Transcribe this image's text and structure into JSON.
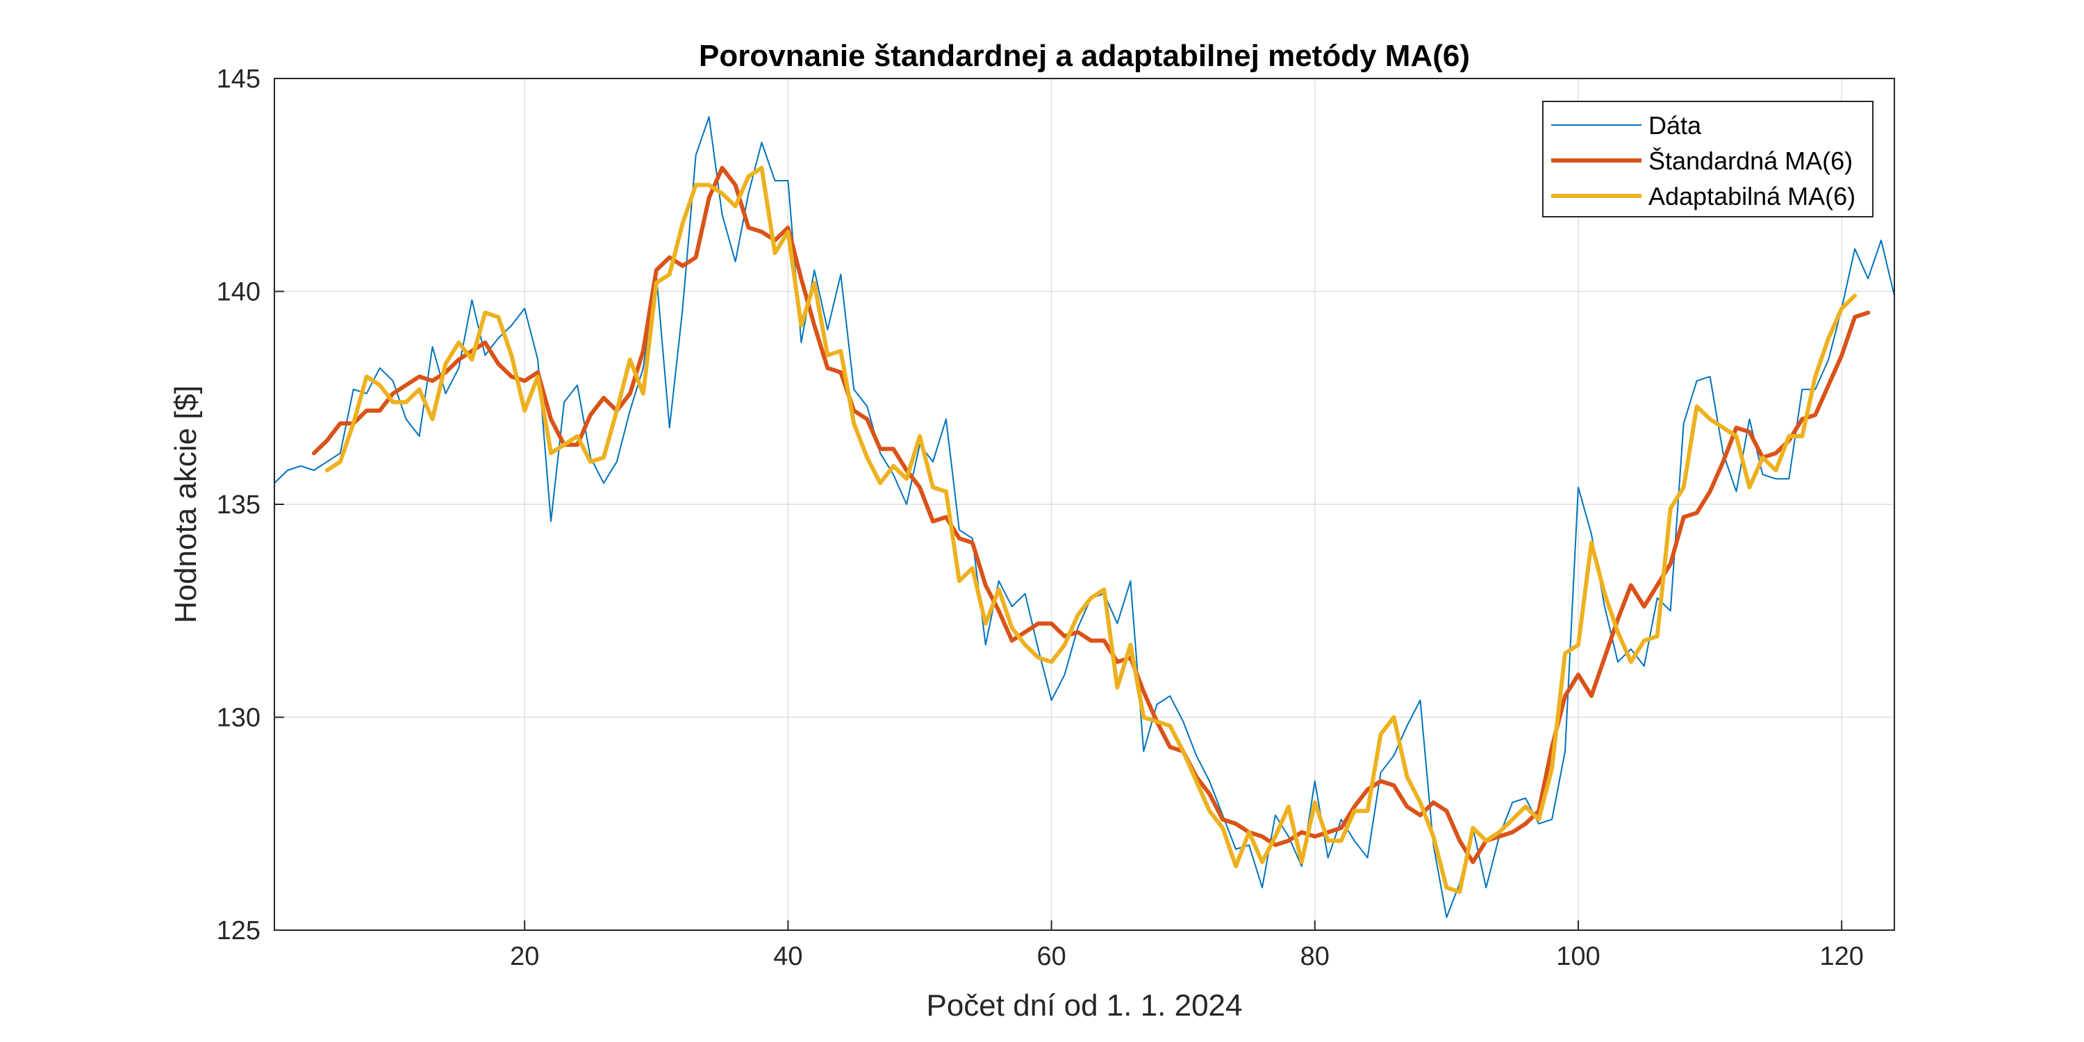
{
  "chart_data": {
    "type": "line",
    "title": "Porovnanie štandardnej a adaptabilnej metódy MA(6)",
    "xlabel": "Počet dní od 1. 1. 2024",
    "ylabel": "Hodnota akcie [$]",
    "xlim": [
      1,
      124
    ],
    "ylim": [
      125,
      145
    ],
    "xticks": [
      20,
      40,
      60,
      80,
      100,
      120
    ],
    "yticks": [
      125,
      130,
      135,
      140,
      145
    ],
    "grid": true,
    "legend_position": "top-right",
    "series": [
      {
        "name": "Dáta",
        "color": "#0072BD",
        "x_start": 1,
        "values": [
          135.5,
          135.8,
          135.9,
          135.8,
          136.0,
          136.2,
          137.7,
          137.6,
          138.2,
          137.9,
          137.0,
          136.6,
          138.7,
          137.6,
          138.2,
          139.8,
          138.5,
          138.9,
          139.2,
          139.6,
          138.4,
          134.6,
          137.4,
          137.8,
          136.1,
          135.5,
          136.0,
          137.2,
          138.2,
          140.4,
          136.8,
          139.6,
          143.2,
          144.1,
          141.8,
          140.7,
          142.3,
          143.5,
          142.6,
          142.6,
          138.8,
          140.5,
          139.1,
          140.4,
          137.7,
          137.3,
          136.2,
          135.7,
          135.0,
          136.4,
          136.0,
          137.0,
          134.4,
          134.2,
          131.7,
          133.2,
          132.6,
          132.9,
          131.6,
          130.4,
          131.0,
          132.1,
          132.8,
          132.9,
          132.2,
          133.2,
          129.2,
          130.3,
          130.5,
          129.9,
          129.1,
          128.5,
          127.7,
          126.9,
          127.0,
          126.0,
          127.7,
          127.2,
          126.5,
          128.5,
          126.7,
          127.6,
          127.1,
          126.7,
          128.7,
          129.1,
          129.8,
          130.4,
          127.0,
          125.3,
          126.1,
          127.4,
          126.0,
          127.2,
          128.0,
          128.1,
          127.5,
          127.6,
          129.2,
          135.4,
          134.3,
          132.6,
          131.3,
          131.6,
          131.2,
          132.8,
          132.5,
          136.9,
          137.9,
          138.0,
          136.2,
          135.3,
          137.0,
          135.7,
          135.6,
          135.6,
          137.7,
          137.7,
          138.4,
          139.6,
          141.0,
          140.3,
          141.2,
          139.9
        ]
      },
      {
        "name": "Štandardná MA(6)",
        "color": "#D95319",
        "x_start": 4,
        "values": [
          136.2,
          136.5,
          136.9,
          136.9,
          137.2,
          137.2,
          137.6,
          137.8,
          138.0,
          137.9,
          138.1,
          138.4,
          138.6,
          138.8,
          138.3,
          138.0,
          137.9,
          138.1,
          137.0,
          136.4,
          136.4,
          137.1,
          137.5,
          137.2,
          137.6,
          138.6,
          140.5,
          140.8,
          140.6,
          140.8,
          142.2,
          142.9,
          142.5,
          141.5,
          141.4,
          141.2,
          141.5,
          140.3,
          139.2,
          138.2,
          138.1,
          137.2,
          137.0,
          136.3,
          136.3,
          135.8,
          135.4,
          134.6,
          134.7,
          134.2,
          134.1,
          133.1,
          132.5,
          131.8,
          132.0,
          132.2,
          132.2,
          131.9,
          132.0,
          131.8,
          131.8,
          131.3,
          131.4,
          130.6,
          129.9,
          129.3,
          129.2,
          128.6,
          128.2,
          127.6,
          127.5,
          127.3,
          127.2,
          127.0,
          127.1,
          127.3,
          127.2,
          127.3,
          127.4,
          127.9,
          128.3,
          128.5,
          128.4,
          127.9,
          127.7,
          128.0,
          127.8,
          127.1,
          126.6,
          127.1,
          127.2,
          127.3,
          127.5,
          127.8,
          129.3,
          130.5,
          131.0,
          130.5,
          131.4,
          132.3,
          133.1,
          132.6,
          133.1,
          133.6,
          134.7,
          134.8,
          135.3,
          136.0,
          136.8,
          136.7,
          136.1,
          136.2,
          136.5,
          137.0,
          137.1,
          137.8,
          138.5,
          139.4,
          139.5
        ]
      },
      {
        "name": "Adaptabilná MA(6)",
        "color": "#EDB120",
        "x_start": 5,
        "values": [
          135.8,
          136.0,
          136.9,
          138.0,
          137.8,
          137.4,
          137.4,
          137.7,
          137.0,
          138.3,
          138.8,
          138.4,
          139.5,
          139.4,
          138.5,
          137.2,
          138.0,
          136.2,
          136.4,
          136.6,
          136.0,
          136.1,
          137.2,
          138.4,
          137.6,
          140.2,
          140.4,
          141.6,
          142.5,
          142.5,
          142.3,
          142.0,
          142.7,
          142.9,
          140.9,
          141.4,
          139.2,
          140.2,
          138.5,
          138.6,
          136.9,
          136.1,
          135.5,
          135.9,
          135.6,
          136.6,
          135.4,
          135.3,
          133.2,
          133.5,
          132.2,
          133.0,
          132.1,
          131.7,
          131.4,
          131.3,
          131.7,
          132.4,
          132.8,
          133.0,
          130.7,
          131.7,
          130.0,
          129.9,
          129.8,
          129.2,
          128.5,
          127.8,
          127.4,
          126.5,
          127.3,
          126.6,
          127.2,
          127.9,
          126.6,
          128.0,
          127.1,
          127.1,
          127.8,
          127.8,
          129.6,
          130.0,
          128.6,
          128.0,
          127.2,
          126.0,
          125.9,
          127.4,
          127.1,
          127.3,
          127.6,
          127.9,
          127.6,
          128.8,
          131.5,
          131.7,
          134.1,
          132.9,
          132.0,
          131.3,
          131.8,
          131.9,
          134.9,
          135.4,
          137.3,
          137.0,
          136.8,
          136.6,
          135.4,
          136.1,
          135.8,
          136.6,
          136.6,
          138.0,
          138.9,
          139.6,
          139.9
        ]
      }
    ]
  }
}
